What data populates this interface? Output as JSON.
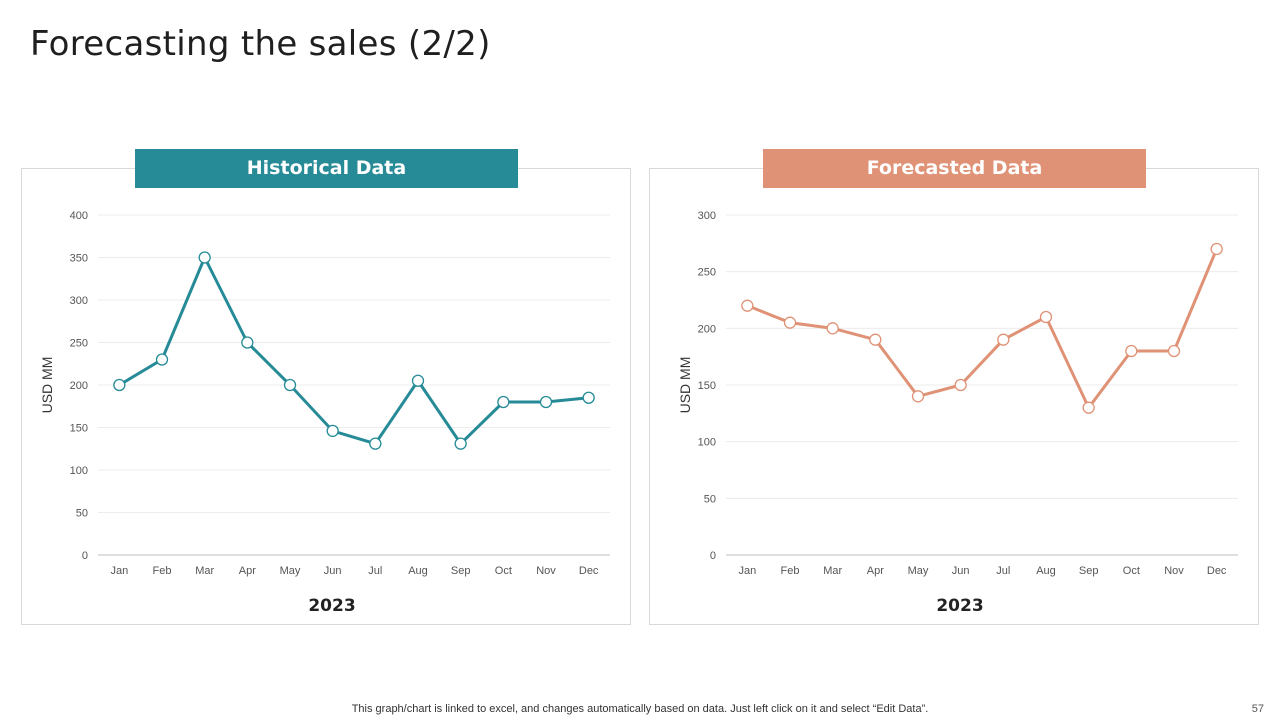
{
  "page": {
    "title": "Forecasting the sales (2/2)",
    "footer_note": "This graph/chart is linked to excel,  and changes automatically based on data. Just left click on it and select “Edit Data”.",
    "page_number": "57"
  },
  "panels": {
    "historical": {
      "header": "Historical Data",
      "header_color": "#268b97"
    },
    "forecasted": {
      "header": "Forecasted Data",
      "header_color": "#df9275"
    }
  },
  "chart_data": [
    {
      "type": "line",
      "title": "Historical Data",
      "categories": [
        "Jan",
        "Feb",
        "Mar",
        "Apr",
        "May",
        "Jun",
        "Jul",
        "Aug",
        "Sep",
        "Oct",
        "Nov",
        "Dec"
      ],
      "series": [
        {
          "name": "Historical",
          "values": [
            200,
            230,
            350,
            250,
            200,
            146,
            131,
            205,
            131,
            180,
            180,
            185
          ],
          "color": "#268b97"
        }
      ],
      "xlabel": "2023",
      "ylabel": "USD MM",
      "ylim": [
        0,
        400
      ],
      "yticks": [
        0,
        50,
        100,
        150,
        200,
        250,
        300,
        350,
        400
      ],
      "grid": true
    },
    {
      "type": "line",
      "title": "Forecasted Data",
      "categories": [
        "Jan",
        "Feb",
        "Mar",
        "Apr",
        "May",
        "Jun",
        "Jul",
        "Aug",
        "Sep",
        "Oct",
        "Nov",
        "Dec"
      ],
      "series": [
        {
          "name": "Forecasted",
          "values": [
            220,
            205,
            200,
            190,
            140,
            150,
            190,
            210,
            130,
            180,
            180,
            270
          ],
          "color": "#df9275"
        }
      ],
      "xlabel": "2023",
      "ylabel": "USD MM",
      "ylim": [
        0,
        300
      ],
      "yticks": [
        0,
        50,
        100,
        150,
        200,
        250,
        300
      ],
      "grid": true
    }
  ]
}
